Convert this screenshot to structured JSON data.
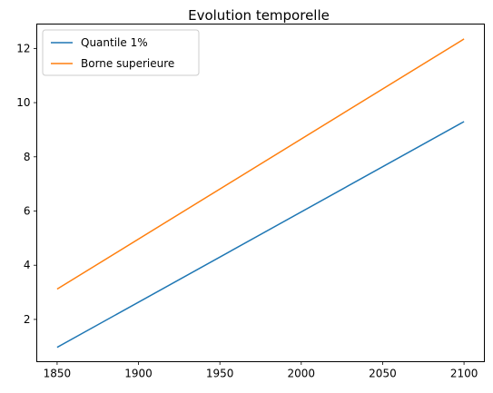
{
  "chart_data": {
    "type": "line",
    "title": "Evolution temporelle",
    "xlabel": "",
    "ylabel": "",
    "x": [
      1850,
      2100
    ],
    "xlim": [
      1837.5,
      2112.5
    ],
    "ylim": [
      0.44,
      12.9
    ],
    "xticks": [
      1850,
      1900,
      1950,
      2000,
      2050,
      2100
    ],
    "yticks": [
      2,
      4,
      6,
      8,
      10,
      12
    ],
    "grid": false,
    "legend_position": "top-left",
    "series": [
      {
        "name": "Quantile 1%",
        "color": "#1f77b4",
        "values": [
          0.97,
          9.3
        ]
      },
      {
        "name": "Borne superieure",
        "color": "#ff7f0e",
        "values": [
          3.12,
          12.35
        ]
      }
    ]
  }
}
